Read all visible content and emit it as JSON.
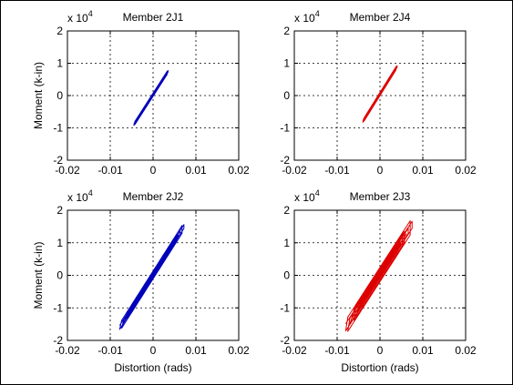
{
  "colors": {
    "background": "#ffffff",
    "frame": "#000000",
    "grid": "#000000",
    "blue": "#0000bb",
    "red": "#dd0000"
  },
  "chart_data": [
    {
      "type": "line",
      "title": "Member 2J1",
      "xlabel": "",
      "ylabel": "Moment (k-in)",
      "xlim": [
        -0.02,
        0.02
      ],
      "ylim": [
        -2,
        2
      ],
      "y_multiplier_label": {
        "base": "x 10",
        "exp": "4"
      },
      "xticks": [
        "-0.02",
        "-0.01",
        "0",
        "0.01",
        "0.02"
      ],
      "yticks": [
        "2",
        "1",
        "0",
        "-1",
        "-2"
      ],
      "grid": true,
      "series": [
        {
          "color": "#0000bb",
          "style": "loop",
          "x": [
            -0.0045,
            0.0035
          ],
          "y": [
            -0.9,
            0.75
          ],
          "loops": 2,
          "width": 0.05
        }
      ]
    },
    {
      "type": "line",
      "title": "Member 2J4",
      "xlabel": "",
      "ylabel": "",
      "xlim": [
        -0.02,
        0.02
      ],
      "ylim": [
        -2,
        2
      ],
      "y_multiplier_label": {
        "base": "x 10",
        "exp": "4"
      },
      "xticks": [
        "-0.02",
        "-0.01",
        "0",
        "0.01",
        "0.02"
      ],
      "yticks": [
        "2",
        "1",
        "0",
        "-1",
        "-2"
      ],
      "grid": true,
      "series": [
        {
          "color": "#dd0000",
          "style": "loop",
          "x": [
            -0.004,
            0.004
          ],
          "y": [
            -0.8,
            0.9
          ],
          "loops": 2,
          "width": 0.05
        }
      ]
    },
    {
      "type": "line",
      "title": "Member 2J2",
      "xlabel": "Distortion (rads)",
      "ylabel": "Moment (k-in)",
      "xlim": [
        -0.02,
        0.02
      ],
      "ylim": [
        -2,
        2
      ],
      "y_multiplier_label": {
        "base": "x 10",
        "exp": "4"
      },
      "xticks": [
        "-0.02",
        "-0.01",
        "0",
        "0.01",
        "0.02"
      ],
      "yticks": [
        "2",
        "1",
        "0",
        "-1",
        "-2"
      ],
      "grid": true,
      "series": [
        {
          "color": "#0000bb",
          "style": "loop",
          "x": [
            -0.0078,
            0.0072
          ],
          "y": [
            -1.6,
            1.5
          ],
          "loops": 6,
          "width": 0.12
        }
      ]
    },
    {
      "type": "line",
      "title": "Member 2J3",
      "xlabel": "Distortion (rads)",
      "ylabel": "",
      "xlim": [
        -0.02,
        0.02
      ],
      "ylim": [
        -2,
        2
      ],
      "y_multiplier_label": {
        "base": "x 10",
        "exp": "4"
      },
      "xticks": [
        "-0.02",
        "-0.01",
        "0",
        "0.01",
        "0.02"
      ],
      "yticks": [
        "2",
        "1",
        "0",
        "-1",
        "-2"
      ],
      "grid": true,
      "series": [
        {
          "color": "#dd0000",
          "style": "loop",
          "x": [
            -0.008,
            0.0075
          ],
          "y": [
            -1.6,
            1.55
          ],
          "loops": 10,
          "width": 0.22
        }
      ]
    }
  ]
}
